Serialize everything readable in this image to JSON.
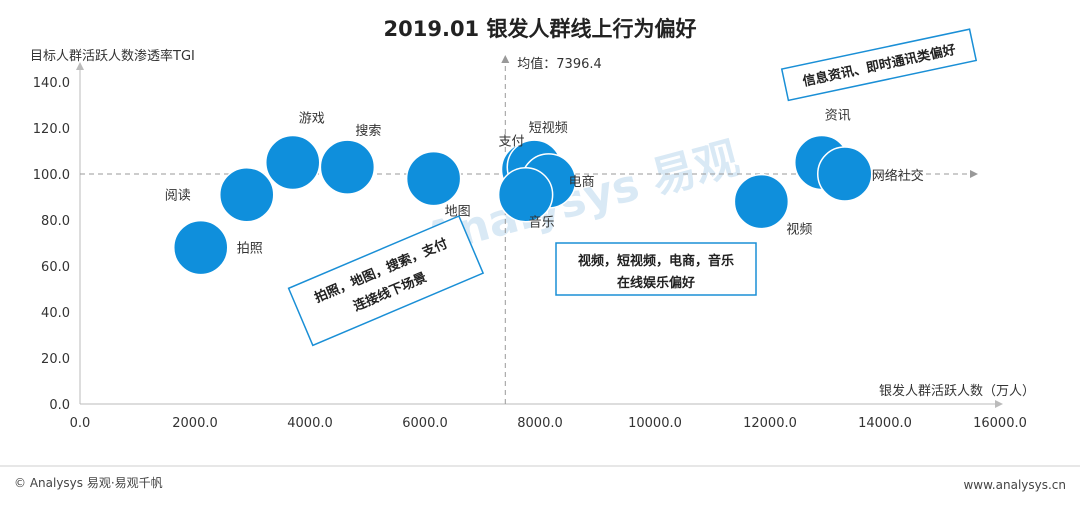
{
  "chart_data": {
    "type": "scatter",
    "title": "2019.01 银发人群线上行为偏好",
    "ylabel": "目标人群活跃人数渗透率TGI",
    "xlabel": "银发人群活跃人数（万人）",
    "xlim": [
      0,
      16000
    ],
    "ylim": [
      0,
      140
    ],
    "xticks": [
      "0.0",
      "2000.0",
      "4000.0",
      "6000.0",
      "8000.0",
      "10000.0",
      "12000.0",
      "14000.0",
      "16000.0"
    ],
    "yticks": [
      "0.0",
      "20.0",
      "40.0",
      "60.0",
      "80.0",
      "100.0",
      "120.0",
      "140.0"
    ],
    "mean_x": 7396.4,
    "mean_label": "均值：7396.4",
    "ref_y": 100,
    "bubble_color": "#0f8fdc",
    "points": [
      {
        "label": "拍照",
        "x": 2100,
        "y": 68
      },
      {
        "label": "阅读",
        "x": 2900,
        "y": 91
      },
      {
        "label": "游戏",
        "x": 3700,
        "y": 105
      },
      {
        "label": "搜索",
        "x": 4650,
        "y": 103
      },
      {
        "label": "地图",
        "x": 6150,
        "y": 98
      },
      {
        "label": "支付",
        "x": 7800,
        "y": 102
      },
      {
        "label": "短视频",
        "x": 7900,
        "y": 103
      },
      {
        "label": "电商",
        "x": 8150,
        "y": 97
      },
      {
        "label": "音乐",
        "x": 7750,
        "y": 91
      },
      {
        "label": "视频",
        "x": 11850,
        "y": 88
      },
      {
        "label": "资讯",
        "x": 12900,
        "y": 105
      },
      {
        "label": "网络社交",
        "x": 13300,
        "y": 100
      }
    ],
    "annotations": [
      {
        "lines": [
          "拍照，地图，搜索，支付",
          "连接线下场景"
        ]
      },
      {
        "lines": [
          "视频，短视频，电商，音乐",
          "在线娱乐偏好"
        ]
      },
      {
        "lines": [
          "信息资讯、即时通讯类偏好"
        ]
      }
    ]
  },
  "watermark": "Analysys 易观",
  "footer": {
    "left": "© Analysys 易观·易观千帆",
    "right": "www.analysys.cn"
  }
}
